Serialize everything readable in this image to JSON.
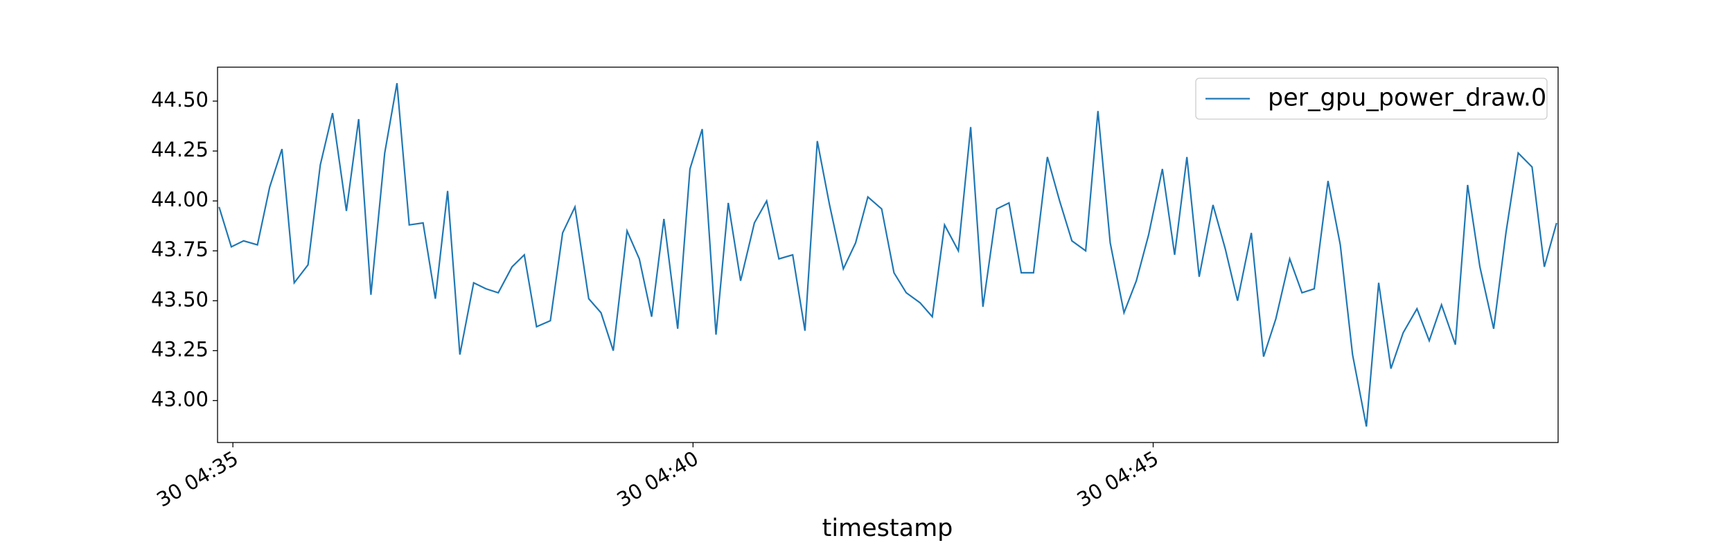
{
  "chart_data": {
    "type": "line",
    "xlabel": "timestamp",
    "x": [
      "30 04:34:51",
      "30 04:34:59",
      "30 04:35:07",
      "30 04:35:16",
      "30 04:35:24",
      "30 04:35:32",
      "30 04:35:40",
      "30 04:35:49",
      "30 04:35:57",
      "30 04:36:05",
      "30 04:36:14",
      "30 04:36:22",
      "30 04:36:30",
      "30 04:36:39",
      "30 04:36:47",
      "30 04:36:55",
      "30 04:37:04",
      "30 04:37:12",
      "30 04:37:20",
      "30 04:37:28",
      "30 04:37:37",
      "30 04:37:45",
      "30 04:37:53",
      "30 04:38:02",
      "30 04:38:10",
      "30 04:38:18",
      "30 04:38:27",
      "30 04:38:35",
      "30 04:38:43",
      "30 04:38:52",
      "30 04:39:00",
      "30 04:39:08",
      "30 04:39:17",
      "30 04:39:25",
      "30 04:39:33",
      "30 04:39:41",
      "30 04:39:50",
      "30 04:39:58",
      "30 04:40:06",
      "30 04:40:15",
      "30 04:40:23",
      "30 04:40:31",
      "30 04:40:40",
      "30 04:40:48",
      "30 04:40:56",
      "30 04:41:05",
      "30 04:41:13",
      "30 04:41:21",
      "30 04:41:29",
      "30 04:41:38",
      "30 04:41:46",
      "30 04:41:54",
      "30 04:42:03",
      "30 04:42:11",
      "30 04:42:19",
      "30 04:42:28",
      "30 04:42:36",
      "30 04:42:44",
      "30 04:42:53",
      "30 04:43:01",
      "30 04:43:09",
      "30 04:43:18",
      "30 04:43:26",
      "30 04:43:34",
      "30 04:43:42",
      "30 04:43:51",
      "30 04:43:59",
      "30 04:44:07",
      "30 04:44:16",
      "30 04:44:24",
      "30 04:44:32",
      "30 04:44:41",
      "30 04:44:49",
      "30 04:44:57",
      "30 04:45:06",
      "30 04:45:14",
      "30 04:45:22",
      "30 04:45:30",
      "30 04:45:39",
      "30 04:45:47",
      "30 04:45:55",
      "30 04:46:04",
      "30 04:46:12",
      "30 04:46:20",
      "30 04:46:29",
      "30 04:46:37",
      "30 04:46:45",
      "30 04:46:54",
      "30 04:47:02",
      "30 04:47:10",
      "30 04:47:19",
      "30 04:47:27",
      "30 04:47:35",
      "30 04:47:43",
      "30 04:47:52",
      "30 04:48:00",
      "30 04:48:08",
      "30 04:48:17",
      "30 04:48:25",
      "30 04:48:33",
      "30 04:48:42",
      "30 04:48:50",
      "30 04:48:58",
      "30 04:49:07",
      "30 04:49:15",
      "30 04:49:23"
    ],
    "series": [
      {
        "name": "per_gpu_power_draw.0",
        "color": "#1f77b4",
        "values": [
          43.97,
          43.77,
          43.8,
          43.78,
          44.07,
          44.26,
          43.59,
          43.68,
          44.18,
          44.44,
          43.95,
          44.41,
          43.53,
          44.24,
          44.59,
          43.88,
          43.89,
          43.51,
          44.05,
          43.23,
          43.59,
          43.56,
          43.54,
          43.67,
          43.73,
          43.37,
          43.4,
          43.84,
          43.97,
          43.51,
          43.44,
          43.25,
          43.85,
          43.71,
          43.42,
          43.91,
          43.36,
          44.16,
          44.36,
          43.33,
          43.99,
          43.6,
          43.89,
          44.0,
          43.71,
          43.73,
          43.35,
          44.3,
          43.98,
          43.66,
          43.79,
          44.02,
          43.96,
          43.64,
          43.54,
          43.49,
          43.42,
          43.88,
          43.75,
          44.37,
          43.47,
          43.96,
          43.99,
          43.64,
          43.64,
          44.22,
          44.0,
          43.8,
          43.75,
          44.45,
          43.79,
          43.44,
          43.6,
          43.83,
          44.16,
          43.73,
          44.22,
          43.62,
          43.98,
          43.76,
          43.5,
          43.84,
          43.22,
          43.41,
          43.71,
          43.54,
          43.56,
          44.1,
          43.78,
          43.23,
          42.87,
          43.59,
          43.16,
          43.34,
          43.46,
          43.3,
          43.48,
          43.28,
          44.08,
          43.67,
          43.36,
          43.84,
          44.24,
          44.17,
          43.67,
          43.89
        ]
      }
    ],
    "xlim": [
      "30 04:34:50",
      "30 04:49:24"
    ],
    "xticks": [
      "30 04:35",
      "30 04:40",
      "30 04:45"
    ],
    "ylim": [
      42.79,
      44.67
    ],
    "yticks": [
      {
        "value": 43,
        "label": "43.00"
      },
      43.25,
      {
        "value": 43.5,
        "label": "43.50"
      },
      43.75,
      {
        "value": 44,
        "label": "44.00"
      },
      44.25,
      {
        "value": 44.5,
        "label": "44.50"
      }
    ],
    "grid": false,
    "legend": "upper right"
  }
}
